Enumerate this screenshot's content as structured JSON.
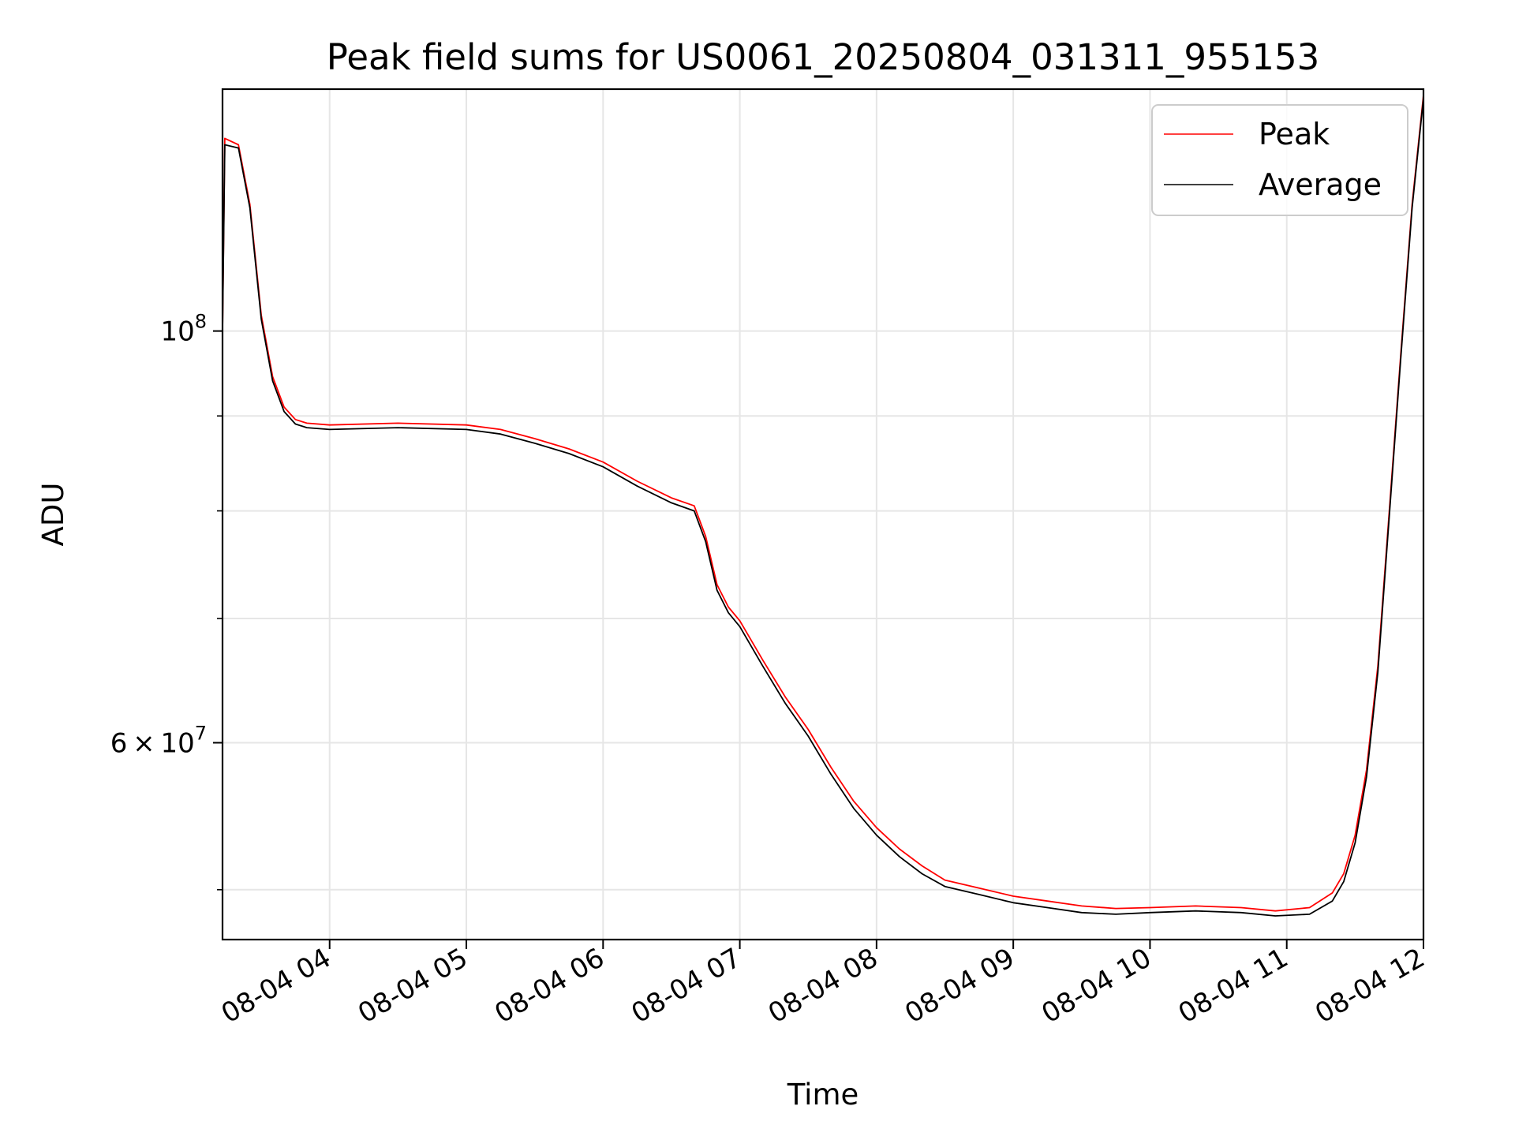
{
  "chart_data": {
    "type": "line",
    "title": "Peak field sums for US0061_20250804_031311_955153",
    "xlabel": "Time",
    "ylabel": "ADU",
    "y_scale": "log",
    "x_unit": "time (MM-DD HH)",
    "x_range": [
      "08-04 03:13",
      "08-04 12:00"
    ],
    "ylim": [
      47000000,
      135000000
    ],
    "x_ticks": [
      {
        "t": "08-04 04:00",
        "label": "08-04 04"
      },
      {
        "t": "08-04 05:00",
        "label": "08-04 05"
      },
      {
        "t": "08-04 06:00",
        "label": "08-04 06"
      },
      {
        "t": "08-04 07:00",
        "label": "08-04 07"
      },
      {
        "t": "08-04 08:00",
        "label": "08-04 08"
      },
      {
        "t": "08-04 09:00",
        "label": "08-04 09"
      },
      {
        "t": "08-04 10:00",
        "label": "08-04 10"
      },
      {
        "t": "08-04 11:00",
        "label": "08-04 11"
      },
      {
        "t": "08-04 12:00",
        "label": "08-04 12"
      }
    ],
    "y_major_ticks": [
      {
        "value": 100000000,
        "base": "10",
        "exp": "8"
      },
      {
        "value": 60000000,
        "mantissa": "6",
        "base": "10",
        "exp": "7"
      }
    ],
    "y_minor_ticks": [
      50000000,
      70000000,
      80000000,
      90000000
    ],
    "grid": true,
    "legend_position": "upper-right",
    "series": [
      {
        "name": "Peak",
        "color": "#ff0000",
        "points": [
          [
            "08-04 03:13",
            100000000
          ],
          [
            "08-04 03:14",
            127000000
          ],
          [
            "08-04 03:20",
            126000000
          ],
          [
            "08-04 03:25",
            117000000
          ],
          [
            "08-04 03:30",
            102000000
          ],
          [
            "08-04 03:35",
            94500000
          ],
          [
            "08-04 03:40",
            91000000
          ],
          [
            "08-04 03:45",
            89600000
          ],
          [
            "08-04 03:50",
            89200000
          ],
          [
            "08-04 04:00",
            89000000
          ],
          [
            "08-04 04:30",
            89200000
          ],
          [
            "08-04 05:00",
            89000000
          ],
          [
            "08-04 05:15",
            88500000
          ],
          [
            "08-04 05:30",
            87500000
          ],
          [
            "08-04 05:45",
            86400000
          ],
          [
            "08-04 06:00",
            85000000
          ],
          [
            "08-04 06:15",
            83000000
          ],
          [
            "08-04 06:30",
            81300000
          ],
          [
            "08-04 06:40",
            80500000
          ],
          [
            "08-04 06:45",
            77500000
          ],
          [
            "08-04 06:50",
            73000000
          ],
          [
            "08-04 06:55",
            71000000
          ],
          [
            "08-04 07:00",
            69800000
          ],
          [
            "08-04 07:10",
            66500000
          ],
          [
            "08-04 07:20",
            63500000
          ],
          [
            "08-04 07:30",
            61000000
          ],
          [
            "08-04 07:40",
            58200000
          ],
          [
            "08-04 07:50",
            55800000
          ],
          [
            "08-04 08:00",
            54000000
          ],
          [
            "08-04 08:10",
            52600000
          ],
          [
            "08-04 08:20",
            51500000
          ],
          [
            "08-04 08:30",
            50600000
          ],
          [
            "08-04 08:45",
            50100000
          ],
          [
            "08-04 09:00",
            49600000
          ],
          [
            "08-04 09:15",
            49300000
          ],
          [
            "08-04 09:30",
            49000000
          ],
          [
            "08-04 09:45",
            48850000
          ],
          [
            "08-04 10:00",
            48900000
          ],
          [
            "08-04 10:20",
            49000000
          ],
          [
            "08-04 10:40",
            48900000
          ],
          [
            "08-04 10:55",
            48700000
          ],
          [
            "08-04 11:10",
            48900000
          ],
          [
            "08-04 11:20",
            49800000
          ],
          [
            "08-04 11:25",
            51000000
          ],
          [
            "08-04 11:30",
            53500000
          ],
          [
            "08-04 11:35",
            58000000
          ],
          [
            "08-04 11:40",
            66000000
          ],
          [
            "08-04 11:45",
            80000000
          ],
          [
            "08-04 11:50",
            97000000
          ],
          [
            "08-04 11:55",
            117000000
          ],
          [
            "08-04 12:00",
            134000000
          ]
        ]
      },
      {
        "name": "Average",
        "color": "#000000",
        "points": [
          [
            "08-04 03:13",
            100000000
          ],
          [
            "08-04 03:14",
            126000000
          ],
          [
            "08-04 03:20",
            125500000
          ],
          [
            "08-04 03:25",
            116500000
          ],
          [
            "08-04 03:30",
            101500000
          ],
          [
            "08-04 03:35",
            94000000
          ],
          [
            "08-04 03:40",
            90500000
          ],
          [
            "08-04 03:45",
            89100000
          ],
          [
            "08-04 03:50",
            88700000
          ],
          [
            "08-04 04:00",
            88500000
          ],
          [
            "08-04 04:30",
            88700000
          ],
          [
            "08-04 05:00",
            88500000
          ],
          [
            "08-04 05:15",
            88000000
          ],
          [
            "08-04 05:30",
            87000000
          ],
          [
            "08-04 05:45",
            85900000
          ],
          [
            "08-04 06:00",
            84500000
          ],
          [
            "08-04 06:15",
            82500000
          ],
          [
            "08-04 06:30",
            80800000
          ],
          [
            "08-04 06:40",
            80000000
          ],
          [
            "08-04 06:45",
            77000000
          ],
          [
            "08-04 06:50",
            72500000
          ],
          [
            "08-04 06:55",
            70500000
          ],
          [
            "08-04 07:00",
            69300000
          ],
          [
            "08-04 07:10",
            66000000
          ],
          [
            "08-04 07:20",
            63000000
          ],
          [
            "08-04 07:30",
            60500000
          ],
          [
            "08-04 07:40",
            57700000
          ],
          [
            "08-04 07:50",
            55300000
          ],
          [
            "08-04 08:00",
            53500000
          ],
          [
            "08-04 08:10",
            52100000
          ],
          [
            "08-04 08:20",
            51000000
          ],
          [
            "08-04 08:30",
            50200000
          ],
          [
            "08-04 08:45",
            49700000
          ],
          [
            "08-04 09:00",
            49200000
          ],
          [
            "08-04 09:15",
            48900000
          ],
          [
            "08-04 09:30",
            48600000
          ],
          [
            "08-04 09:45",
            48500000
          ],
          [
            "08-04 10:00",
            48600000
          ],
          [
            "08-04 10:20",
            48700000
          ],
          [
            "08-04 10:40",
            48600000
          ],
          [
            "08-04 10:55",
            48400000
          ],
          [
            "08-04 11:10",
            48500000
          ],
          [
            "08-04 11:20",
            49300000
          ],
          [
            "08-04 11:25",
            50500000
          ],
          [
            "08-04 11:30",
            53000000
          ],
          [
            "08-04 11:35",
            57500000
          ],
          [
            "08-04 11:40",
            65500000
          ],
          [
            "08-04 11:45",
            79500000
          ],
          [
            "08-04 11:50",
            96500000
          ],
          [
            "08-04 11:55",
            116500000
          ],
          [
            "08-04 12:00",
            133500000
          ]
        ]
      }
    ]
  }
}
